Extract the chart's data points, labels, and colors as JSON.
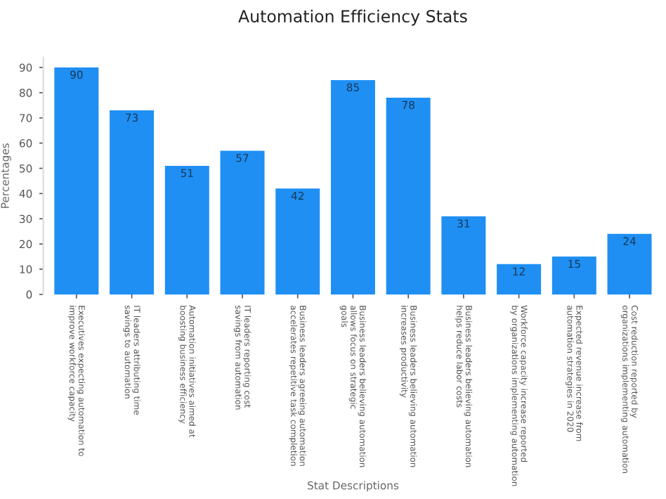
{
  "chart_data": {
    "type": "bar",
    "title": "Automation Efficiency Stats",
    "xlabel": "Stat Descriptions",
    "ylabel": "Percentages",
    "categories": [
      "Executives expecting automation to\nimprove workforce capacity",
      "IT leaders attributing time\nsavings to automation",
      "Automation initiatives aimed at\nboosting business efficiency",
      "IT leaders reporting cost\nsavings from automation",
      "Business leaders agreeing automation\naccelerates repetitive task completion",
      "Business leaders believing automation\nallows focus on strategic\ngoals",
      "Business leaders believing automation\nincreases productivity",
      "Business leaders believing automation\nhelps reduce labor costs",
      "Workforce capacity increase reported\nby organizations implementing automation",
      "Expected revenue increase from\nautomation strategies in 2020",
      "Cost reduction reported by\norganizations implementing automation"
    ],
    "values": [
      90,
      73,
      51,
      57,
      42,
      85,
      78,
      31,
      12,
      15,
      24
    ],
    "color": "#1f8ff3",
    "ylim": [
      0,
      94
    ],
    "yticks": [
      0,
      10,
      20,
      30,
      40,
      50,
      60,
      70,
      80,
      90
    ],
    "grid": false,
    "data_labels": true
  }
}
